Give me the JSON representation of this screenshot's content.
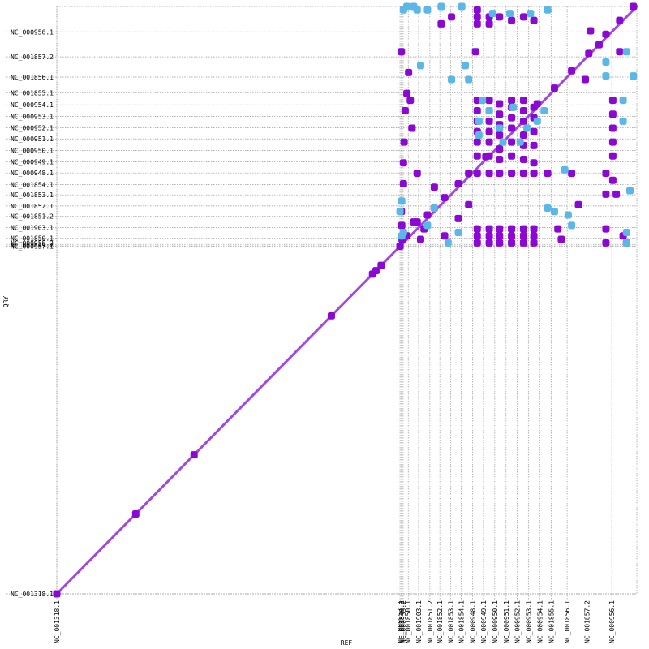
{
  "chart_data": {
    "type": "scatter",
    "xlabel": "REF",
    "ylabel": "QRY",
    "grid": true,
    "colors": {
      "forward": "#8b08d4",
      "reverse": "#5bb8e6",
      "diagonal": "#a347e0"
    },
    "ref_ticks": [
      {
        "label": "NC_001318.1",
        "at": 0
      },
      {
        "label": "NC_000957.1",
        "at": 1000
      },
      {
        "label": "NC_001849.2",
        "at": 1004
      },
      {
        "label": "NC_000955.2",
        "at": 1009
      },
      {
        "label": "NC_001850.1",
        "at": 1024
      },
      {
        "label": "NC_001903.1",
        "at": 1054
      },
      {
        "label": "NC_001851.2",
        "at": 1087
      },
      {
        "label": "NC_001852.1",
        "at": 1116
      },
      {
        "label": "NC_001853.1",
        "at": 1148
      },
      {
        "label": "NC_001854.1",
        "at": 1178
      },
      {
        "label": "NC_000948.1",
        "at": 1211
      },
      {
        "label": "NC_000949.1",
        "at": 1243
      },
      {
        "label": "NC_000950.1",
        "at": 1276
      },
      {
        "label": "NC_000951.1",
        "at": 1309
      },
      {
        "label": "NC_000952.1",
        "at": 1341
      },
      {
        "label": "NC_000953.1",
        "at": 1374
      },
      {
        "label": "NC_000954.1",
        "at": 1407
      },
      {
        "label": "NC_001855.1",
        "at": 1441
      },
      {
        "label": "NC_001856.1",
        "at": 1487
      },
      {
        "label": "NC_001857.2",
        "at": 1545
      },
      {
        "label": "NC_000956.1",
        "at": 1617
      }
    ],
    "qry_ticks": [
      {
        "label": "NC_001318.1",
        "at": 0
      },
      {
        "label": "NC_000957.1",
        "at": 1000
      },
      {
        "label": "NC_001849.2",
        "at": 1004
      },
      {
        "label": "NC_000955.2",
        "at": 1009
      },
      {
        "label": "NC_001850.1",
        "at": 1024
      },
      {
        "label": "NC_001903.1",
        "at": 1054
      },
      {
        "label": "NC_001851.2",
        "at": 1087
      },
      {
        "label": "NC_001852.1",
        "at": 1116
      },
      {
        "label": "NC_001853.1",
        "at": 1148
      },
      {
        "label": "NC_001854.1",
        "at": 1178
      },
      {
        "label": "NC_000948.1",
        "at": 1211
      },
      {
        "label": "NC_000949.1",
        "at": 1243
      },
      {
        "label": "NC_000950.1",
        "at": 1276
      },
      {
        "label": "NC_000951.1",
        "at": 1309
      },
      {
        "label": "NC_000952.1",
        "at": 1341
      },
      {
        "label": "NC_000953.1",
        "at": 1374
      },
      {
        "label": "NC_000954.1",
        "at": 1407
      },
      {
        "label": "NC_001855.1",
        "at": 1441
      },
      {
        "label": "NC_001856.1",
        "at": 1487
      },
      {
        "label": "NC_001857.2",
        "at": 1545
      },
      {
        "label": "NC_000956.1",
        "at": 1617
      }
    ],
    "xlim": [
      0,
      1690
    ],
    "ylim": [
      0,
      1690
    ],
    "diagonal": [
      [
        0,
        0
      ],
      [
        1690,
        1690
      ]
    ],
    "forward_points": [
      [
        0,
        0
      ],
      [
        230,
        230
      ],
      [
        400,
        400
      ],
      [
        800,
        800
      ],
      [
        920,
        920
      ],
      [
        930,
        930
      ],
      [
        945,
        945
      ],
      [
        1000,
        1000
      ],
      [
        1020,
        1030
      ],
      [
        1050,
        1070
      ],
      [
        1080,
        1090
      ],
      [
        1100,
        1110
      ],
      [
        1130,
        1140
      ],
      [
        1170,
        1180
      ],
      [
        1200,
        1210
      ],
      [
        1250,
        1258
      ],
      [
        1400,
        1410
      ],
      [
        1450,
        1455
      ],
      [
        1500,
        1505
      ],
      [
        1550,
        1555
      ],
      [
        1580,
        1580
      ],
      [
        1600,
        1610
      ],
      [
        1640,
        1650
      ],
      [
        1680,
        1690
      ],
      [
        1004,
        1560
      ],
      [
        1004,
        1100
      ],
      [
        1005,
        1060
      ],
      [
        1006,
        1020
      ],
      [
        1010,
        1180
      ],
      [
        1010,
        1240
      ],
      [
        1012,
        1300
      ],
      [
        1015,
        1390
      ],
      [
        1020,
        1440
      ],
      [
        1025,
        1500
      ],
      [
        1030,
        1420
      ],
      [
        1035,
        1340
      ],
      [
        1040,
        1070
      ],
      [
        1050,
        1210
      ],
      [
        1060,
        1020
      ],
      [
        1070,
        1050
      ],
      [
        1100,
        1170
      ],
      [
        1120,
        1640
      ],
      [
        1130,
        1030
      ],
      [
        1150,
        1660
      ],
      [
        1170,
        1080
      ],
      [
        1200,
        1120
      ],
      [
        1220,
        1560
      ],
      [
        1225,
        1010
      ],
      [
        1225,
        1030
      ],
      [
        1225,
        1050
      ],
      [
        1225,
        1210
      ],
      [
        1225,
        1260
      ],
      [
        1225,
        1300
      ],
      [
        1225,
        1330
      ],
      [
        1225,
        1360
      ],
      [
        1225,
        1390
      ],
      [
        1225,
        1420
      ],
      [
        1225,
        1640
      ],
      [
        1225,
        1660
      ],
      [
        1225,
        1680
      ],
      [
        1260,
        1010
      ],
      [
        1260,
        1030
      ],
      [
        1260,
        1050
      ],
      [
        1260,
        1210
      ],
      [
        1260,
        1260
      ],
      [
        1260,
        1300
      ],
      [
        1260,
        1330
      ],
      [
        1260,
        1360
      ],
      [
        1260,
        1390
      ],
      [
        1260,
        1420
      ],
      [
        1260,
        1640
      ],
      [
        1260,
        1660
      ],
      [
        1290,
        1010
      ],
      [
        1290,
        1030
      ],
      [
        1290,
        1050
      ],
      [
        1290,
        1210
      ],
      [
        1290,
        1250
      ],
      [
        1290,
        1280
      ],
      [
        1290,
        1320
      ],
      [
        1290,
        1350
      ],
      [
        1290,
        1380
      ],
      [
        1290,
        1410
      ],
      [
        1290,
        1660
      ],
      [
        1325,
        1010
      ],
      [
        1325,
        1030
      ],
      [
        1325,
        1050
      ],
      [
        1325,
        1210
      ],
      [
        1325,
        1260
      ],
      [
        1325,
        1300
      ],
      [
        1325,
        1340
      ],
      [
        1325,
        1370
      ],
      [
        1325,
        1400
      ],
      [
        1325,
        1420
      ],
      [
        1325,
        1650
      ],
      [
        1360,
        1010
      ],
      [
        1360,
        1030
      ],
      [
        1360,
        1050
      ],
      [
        1360,
        1210
      ],
      [
        1360,
        1250
      ],
      [
        1360,
        1290
      ],
      [
        1360,
        1320
      ],
      [
        1360,
        1360
      ],
      [
        1360,
        1390
      ],
      [
        1360,
        1420
      ],
      [
        1360,
        1660
      ],
      [
        1390,
        1010
      ],
      [
        1390,
        1030
      ],
      [
        1390,
        1050
      ],
      [
        1390,
        1210
      ],
      [
        1390,
        1240
      ],
      [
        1390,
        1290
      ],
      [
        1390,
        1330
      ],
      [
        1390,
        1370
      ],
      [
        1390,
        1400
      ],
      [
        1390,
        1650
      ],
      [
        1430,
        1210
      ],
      [
        1460,
        1050
      ],
      [
        1470,
        1020
      ],
      [
        1500,
        1210
      ],
      [
        1520,
        1120
      ],
      [
        1540,
        1480
      ],
      [
        1555,
        1620
      ],
      [
        1600,
        1010
      ],
      [
        1600,
        1050
      ],
      [
        1600,
        1150
      ],
      [
        1600,
        1210
      ],
      [
        1620,
        1190
      ],
      [
        1620,
        1260
      ],
      [
        1620,
        1300
      ],
      [
        1620,
        1340
      ],
      [
        1620,
        1380
      ],
      [
        1620,
        1420
      ],
      [
        1630,
        1150
      ],
      [
        1640,
        1560
      ],
      [
        1650,
        1030
      ],
      [
        1660,
        1010
      ]
    ],
    "reverse_points": [
      [
        1000,
        1100
      ],
      [
        1005,
        1030
      ],
      [
        1005,
        1130
      ],
      [
        1010,
        1040
      ],
      [
        1010,
        1680
      ],
      [
        1020,
        1690
      ],
      [
        1040,
        1690
      ],
      [
        1050,
        1680
      ],
      [
        1060,
        1520
      ],
      [
        1080,
        1060
      ],
      [
        1080,
        1680
      ],
      [
        1100,
        1110
      ],
      [
        1120,
        1690
      ],
      [
        1140,
        1010
      ],
      [
        1150,
        1480
      ],
      [
        1170,
        1040
      ],
      [
        1180,
        1690
      ],
      [
        1190,
        1520
      ],
      [
        1200,
        1480
      ],
      [
        1230,
        1320
      ],
      [
        1230,
        1360
      ],
      [
        1240,
        1420
      ],
      [
        1260,
        1390
      ],
      [
        1270,
        1670
      ],
      [
        1290,
        1340
      ],
      [
        1300,
        1300
      ],
      [
        1320,
        1670
      ],
      [
        1330,
        1400
      ],
      [
        1350,
        1300
      ],
      [
        1370,
        1340
      ],
      [
        1380,
        1670
      ],
      [
        1400,
        1360
      ],
      [
        1420,
        1390
      ],
      [
        1430,
        1680
      ],
      [
        1430,
        1110
      ],
      [
        1450,
        1100
      ],
      [
        1480,
        1220
      ],
      [
        1490,
        1090
      ],
      [
        1500,
        1060
      ],
      [
        1600,
        1490
      ],
      [
        1600,
        1530
      ],
      [
        1650,
        1420
      ],
      [
        1650,
        1360
      ],
      [
        1660,
        1010
      ],
      [
        1660,
        1040
      ],
      [
        1660,
        1560
      ],
      [
        1670,
        1160
      ],
      [
        1680,
        1490
      ]
    ]
  }
}
